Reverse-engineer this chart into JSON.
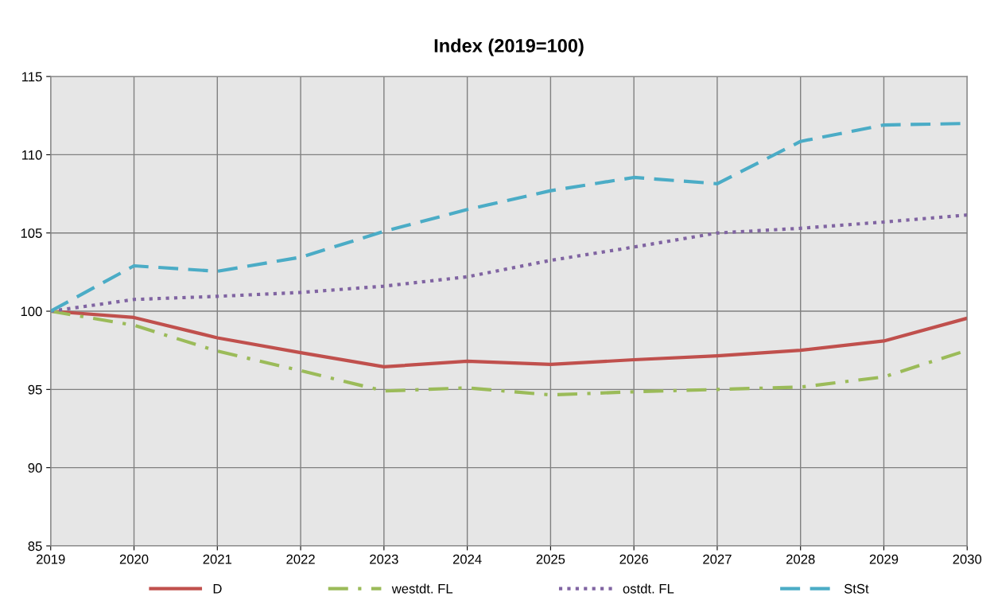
{
  "chart_data": {
    "type": "line",
    "title": "Index (2019=100)",
    "categories": [
      "2019",
      "2020",
      "2021",
      "2022",
      "2023",
      "2024",
      "2025",
      "2026",
      "2027",
      "2028",
      "2029",
      "2030"
    ],
    "series": [
      {
        "name": "D",
        "color": "#c0504d",
        "line_style": "solid",
        "values": [
          100,
          99.6,
          98.3,
          97.35,
          96.45,
          96.8,
          96.6,
          96.9,
          97.15,
          97.5,
          98.1,
          99.55
        ]
      },
      {
        "name": "westdt. FL",
        "color": "#9bbb59",
        "line_style": "dashdot",
        "values": [
          100,
          99.1,
          97.45,
          96.2,
          94.9,
          95.1,
          94.65,
          94.85,
          95.0,
          95.15,
          95.8,
          97.5
        ]
      },
      {
        "name": "ostdt. FL",
        "color": "#8064a2",
        "line_style": "dotted",
        "values": [
          100,
          100.75,
          100.95,
          101.2,
          101.6,
          102.2,
          103.25,
          104.1,
          105.0,
          105.3,
          105.7,
          106.15
        ]
      },
      {
        "name": "StSt",
        "color": "#4bacc6",
        "line_style": "dashed",
        "values": [
          100,
          102.9,
          102.55,
          103.45,
          105.1,
          106.5,
          107.7,
          108.55,
          108.15,
          110.85,
          111.9,
          112.0
        ]
      }
    ],
    "ylim": [
      85,
      115
    ],
    "yticks": [
      85,
      90,
      95,
      100,
      105,
      110,
      115
    ],
    "grid": true,
    "legend": "bottom",
    "marker": "none"
  }
}
